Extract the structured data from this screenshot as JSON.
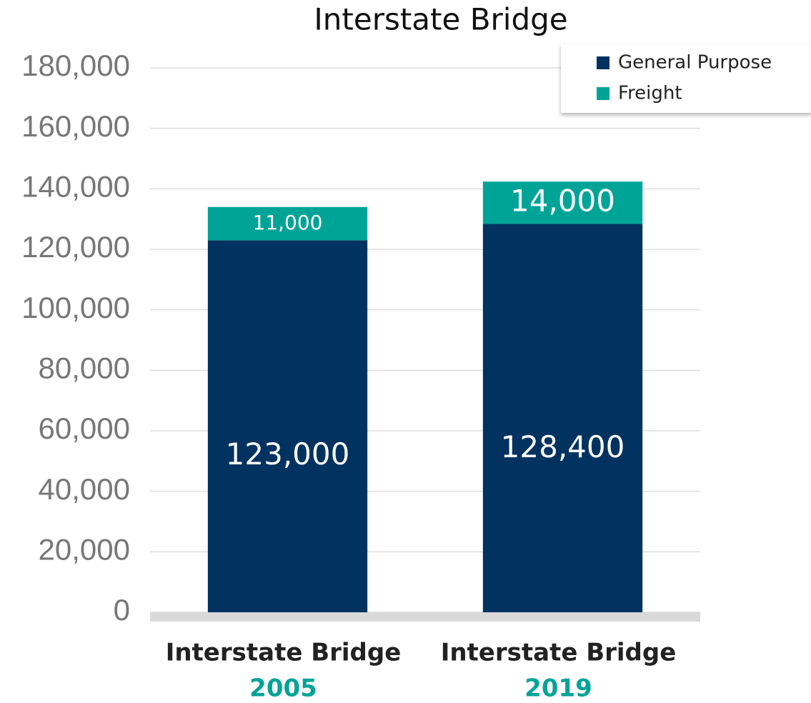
{
  "chart_data": {
    "type": "stacked_bar",
    "title": "Interstate Bridge",
    "categories": [
      [
        "Interstate Bridge",
        "2005"
      ],
      [
        "Interstate Bridge",
        "2019"
      ]
    ],
    "series": [
      {
        "name": "General Purpose",
        "color": "#02325f",
        "values": [
          123000,
          128400
        ],
        "value_labels": [
          "123,000",
          "128,400"
        ]
      },
      {
        "name": "Freight",
        "color": "#00a497",
        "values": [
          11000,
          14000
        ],
        "value_labels": [
          "11,000",
          "14,000"
        ]
      }
    ],
    "ylim": [
      0,
      180000
    ],
    "yticks": [
      0,
      {
        "value": 20000,
        "label": "20,000"
      },
      {
        "value": 40000,
        "label": "40,000"
      },
      {
        "value": 60000,
        "label": "60,000"
      },
      {
        "value": 80000,
        "label": "80,000"
      },
      {
        "value": 100000,
        "label": "100,000"
      },
      {
        "value": 120000,
        "label": "120,000"
      },
      {
        "value": 140000,
        "label": "140,000"
      },
      {
        "value": 160000,
        "label": "160,000"
      },
      {
        "value": 180000,
        "label": "180,000"
      }
    ],
    "grid": true,
    "legend": "top-right"
  }
}
